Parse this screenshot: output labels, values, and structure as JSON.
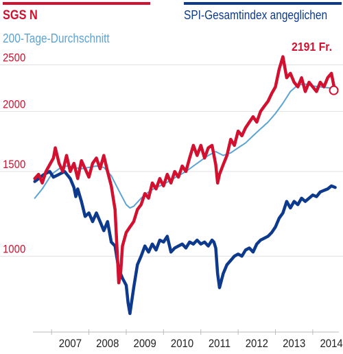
{
  "colors": {
    "sgs": "#d2102f",
    "ma200": "#5ba3d3",
    "spi": "#0d3a8c",
    "grid": "#e0e0e0",
    "axis_text": "#222222"
  },
  "legend": {
    "sgs": "SGS N",
    "ma200": "200-Tage-Durchschnitt",
    "spi": "SPI-Gesamtindex angeglichen"
  },
  "chart_data": {
    "type": "line",
    "yscale": "log",
    "ylim": [
      700,
      2800
    ],
    "xlim": [
      2006.5,
      2014.7
    ],
    "yticks": [
      {
        "value": 2500,
        "label": "2500"
      },
      {
        "value": 2000,
        "label": "2000"
      },
      {
        "value": 1500,
        "label": "1500"
      },
      {
        "value": 1000,
        "label": "1000"
      }
    ],
    "xticks": [
      {
        "value": 2007.0,
        "label": "2007"
      },
      {
        "value": 2008.0,
        "label": "2008"
      },
      {
        "value": 2009.0,
        "label": "2009"
      },
      {
        "value": 2010.0,
        "label": "2010"
      },
      {
        "value": 2011.0,
        "label": "2011"
      },
      {
        "value": 2012.0,
        "label": "2012"
      },
      {
        "value": 2013.0,
        "label": "2013"
      },
      {
        "value": 2014.0,
        "label": "2014"
      }
    ],
    "annotation": {
      "text": "2191 Fr.",
      "x": 2014.6,
      "y": 2191
    },
    "series": [
      {
        "name": "SGS N",
        "key": "sgs",
        "x": [
          2006.55,
          2006.65,
          2006.75,
          2006.85,
          2006.95,
          2007.05,
          2007.1,
          2007.2,
          2007.3,
          2007.4,
          2007.5,
          2007.6,
          2007.7,
          2007.8,
          2007.9,
          2008.0,
          2008.1,
          2008.2,
          2008.3,
          2008.4,
          2008.5,
          2008.6,
          2008.7,
          2008.75,
          2008.8,
          2008.85,
          2008.9,
          2009.0,
          2009.1,
          2009.2,
          2009.3,
          2009.4,
          2009.5,
          2009.6,
          2009.7,
          2009.8,
          2009.9,
          2010.0,
          2010.1,
          2010.2,
          2010.3,
          2010.4,
          2010.5,
          2010.6,
          2010.7,
          2010.8,
          2010.9,
          2011.0,
          2011.1,
          2011.2,
          2011.3,
          2011.4,
          2011.45,
          2011.5,
          2011.6,
          2011.7,
          2011.8,
          2011.9,
          2012.0,
          2012.1,
          2012.2,
          2012.3,
          2012.4,
          2012.5,
          2012.6,
          2012.7,
          2012.8,
          2012.9,
          2013.0,
          2013.1,
          2013.2,
          2013.3,
          2013.4,
          2013.5,
          2013.6,
          2013.7,
          2013.8,
          2013.9,
          2014.0,
          2014.1,
          2014.2,
          2014.3,
          2014.4,
          2014.5,
          2014.6
        ],
        "y": [
          1450,
          1480,
          1420,
          1500,
          1550,
          1600,
          1680,
          1560,
          1500,
          1620,
          1500,
          1560,
          1450,
          1580,
          1520,
          1460,
          1560,
          1600,
          1520,
          1620,
          1500,
          1400,
          1250,
          1050,
          880,
          920,
          1050,
          1120,
          1150,
          1180,
          1250,
          1280,
          1350,
          1320,
          1420,
          1380,
          1450,
          1400,
          1480,
          1420,
          1500,
          1460,
          1540,
          1500,
          1600,
          1700,
          1620,
          1700,
          1600,
          1680,
          1700,
          1550,
          1420,
          1480,
          1550,
          1620,
          1750,
          1700,
          1820,
          1780,
          1850,
          1900,
          1950,
          1900,
          2000,
          2050,
          2100,
          2180,
          2250,
          2450,
          2600,
          2350,
          2400,
          2300,
          2250,
          2350,
          2200,
          2300,
          2250,
          2200,
          2300,
          2250,
          2350,
          2400,
          2191
        ]
      },
      {
        "name": "200-Tage-Durchschnitt",
        "key": "ma200",
        "x": [
          2006.55,
          2006.75,
          2007.0,
          2007.2,
          2007.4,
          2007.6,
          2007.8,
          2008.0,
          2008.2,
          2008.4,
          2008.6,
          2008.8,
          2009.0,
          2009.1,
          2009.2,
          2009.4,
          2009.6,
          2009.8,
          2010.0,
          2010.2,
          2010.4,
          2010.6,
          2010.8,
          2011.0,
          2011.2,
          2011.4,
          2011.6,
          2011.8,
          2012.0,
          2012.2,
          2012.4,
          2012.6,
          2012.8,
          2013.0,
          2013.2,
          2013.4,
          2013.6,
          2013.8,
          2014.0,
          2014.2,
          2014.4,
          2014.6
        ],
        "y": [
          1320,
          1380,
          1480,
          1520,
          1540,
          1530,
          1520,
          1530,
          1540,
          1530,
          1470,
          1370,
          1280,
          1260,
          1270,
          1320,
          1360,
          1390,
          1410,
          1440,
          1470,
          1500,
          1540,
          1580,
          1620,
          1650,
          1620,
          1640,
          1680,
          1720,
          1780,
          1840,
          1900,
          1980,
          2080,
          2200,
          2270,
          2280,
          2260,
          2250,
          2240,
          2230
        ]
      },
      {
        "name": "SPI-Gesamtindex angeglichen",
        "key": "spi",
        "x": [
          2006.55,
          2006.65,
          2006.8,
          2006.95,
          2007.05,
          2007.2,
          2007.35,
          2007.5,
          2007.6,
          2007.65,
          2007.7,
          2007.8,
          2007.9,
          2008.0,
          2008.1,
          2008.2,
          2008.3,
          2008.4,
          2008.5,
          2008.6,
          2008.7,
          2008.8,
          2008.9,
          2009.0,
          2009.05,
          2009.1,
          2009.2,
          2009.3,
          2009.4,
          2009.5,
          2009.6,
          2009.7,
          2009.8,
          2009.9,
          2010.0,
          2010.1,
          2010.2,
          2010.3,
          2010.4,
          2010.5,
          2010.6,
          2010.7,
          2010.8,
          2010.9,
          2011.0,
          2011.1,
          2011.2,
          2011.3,
          2011.35,
          2011.4,
          2011.45,
          2011.5,
          2011.6,
          2011.7,
          2011.8,
          2011.9,
          2012.0,
          2012.1,
          2012.2,
          2012.3,
          2012.4,
          2012.5,
          2012.6,
          2012.7,
          2012.8,
          2012.9,
          2013.0,
          2013.1,
          2013.2,
          2013.3,
          2013.4,
          2013.5,
          2013.6,
          2013.7,
          2013.8,
          2013.9,
          2014.0,
          2014.1,
          2014.2,
          2014.3,
          2014.4,
          2014.5,
          2014.6
        ],
        "y": [
          1430,
          1450,
          1480,
          1500,
          1460,
          1480,
          1500,
          1450,
          1390,
          1330,
          1380,
          1300,
          1210,
          1230,
          1180,
          1230,
          1180,
          1130,
          1180,
          1070,
          1050,
          940,
          900,
          870,
          800,
          760,
          860,
          960,
          1000,
          1050,
          1020,
          1060,
          1030,
          1080,
          1070,
          1100,
          1020,
          1040,
          1050,
          1060,
          1040,
          1070,
          1060,
          1080,
          1060,
          1070,
          1050,
          1080,
          1070,
          1040,
          920,
          860,
          920,
          960,
          980,
          1000,
          1010,
          1000,
          1030,
          1040,
          1020,
          1060,
          1080,
          1090,
          1100,
          1120,
          1150,
          1200,
          1230,
          1300,
          1260,
          1300,
          1280,
          1320,
          1300,
          1320,
          1340,
          1330,
          1360,
          1370,
          1380,
          1400,
          1390
        ]
      }
    ]
  }
}
